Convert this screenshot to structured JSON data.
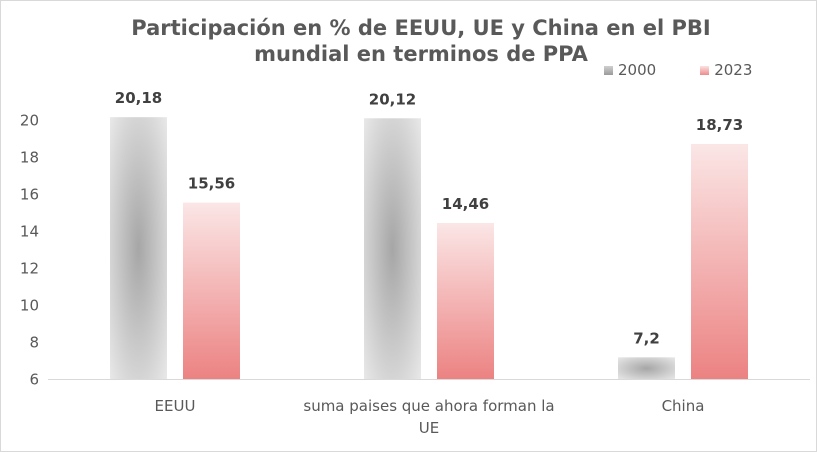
{
  "chart_data": {
    "type": "bar",
    "title": "Participación en % de EEUU, UE y China en el PBI mundial en terminos de PPA",
    "title_lines": [
      "Participación en % de EEUU, UE y China en el PBI",
      "mundial en terminos de PPA"
    ],
    "categories": [
      "EEUU",
      "suma paises que ahora forman la UE",
      "China"
    ],
    "category_lines": [
      [
        "EEUU"
      ],
      [
        "suma paises que ahora forman la",
        "UE"
      ],
      [
        "China"
      ]
    ],
    "series": [
      {
        "name": "2000",
        "values": [
          20.18,
          20.12,
          7.2
        ],
        "labels": [
          "20,18",
          "20,12",
          "7,2"
        ],
        "color": "#bfbfbf"
      },
      {
        "name": "2023",
        "values": [
          15.56,
          14.46,
          18.73
        ],
        "labels": [
          "15,56",
          "14,46",
          "18,73"
        ],
        "color": "#ee8b8b"
      }
    ],
    "yticks": [
      "6",
      "8",
      "10",
      "12",
      "14",
      "16",
      "18",
      "20"
    ],
    "ylim": [
      6,
      20
    ],
    "xlabel": "",
    "ylabel": "",
    "grid": false,
    "legend_position": "top-right"
  }
}
